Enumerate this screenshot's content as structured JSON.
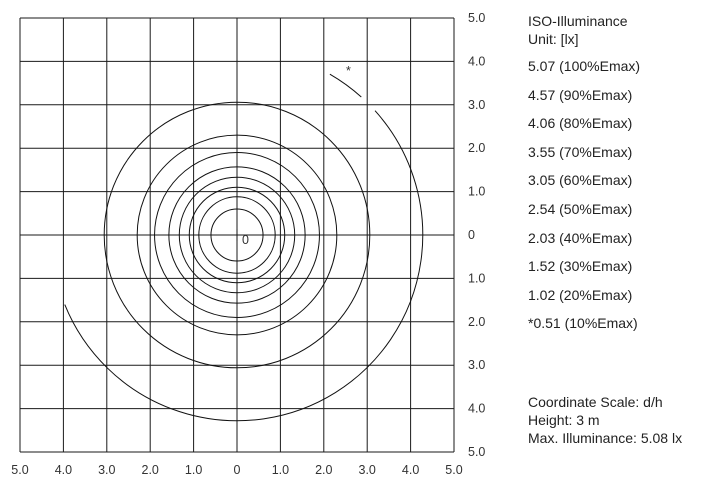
{
  "chart_data": {
    "type": "line",
    "title": "ISO-Illuminance",
    "unit_label": "Unit: [lx]",
    "xlim": [
      -5,
      5
    ],
    "ylim": [
      -5,
      5
    ],
    "grid": true,
    "x_tick_labels": [
      "5.0",
      "4.0",
      "3.0",
      "2.0",
      "1.0",
      "0",
      "1.0",
      "2.0",
      "3.0",
      "4.0",
      "5.0"
    ],
    "y_tick_labels": [
      "5.0",
      "4.0",
      "3.0",
      "2.0",
      "1.0",
      "0",
      "1.0",
      "2.0",
      "3.0",
      "4.0",
      "5.0"
    ],
    "center_label": "0",
    "marker_label": "*",
    "contours": [
      {
        "label": "5.07 (100%Emax)",
        "level": 5.07,
        "radius": null
      },
      {
        "label": "4.57 (90%Emax)",
        "level": 4.57,
        "radius": 0.6
      },
      {
        "label": "4.06 (80%Emax)",
        "level": 4.06,
        "radius": 0.88
      },
      {
        "label": "3.55 (70%Emax)",
        "level": 3.55,
        "radius": 1.1
      },
      {
        "label": "3.05 (60%Emax)",
        "level": 3.05,
        "radius": 1.33
      },
      {
        "label": "2.54 (50%Emax)",
        "level": 2.54,
        "radius": 1.57
      },
      {
        "label": "2.03 (40%Emax)",
        "level": 2.03,
        "radius": 1.9
      },
      {
        "label": "1.52 (30%Emax)",
        "level": 1.52,
        "radius": 2.3
      },
      {
        "label": "1.02 (20%Emax)",
        "level": 1.02,
        "radius": 3.06
      },
      {
        "label": "*0.51 (10%Emax)",
        "level": 0.51,
        "radius": 4.28,
        "partial": true
      }
    ]
  },
  "legend": {
    "title": "ISO-Illuminance",
    "unit": "Unit: [lx]"
  },
  "info": {
    "scale": "Coordinate Scale: d/h",
    "height": "Height: 3 m",
    "max": "Max. Illuminance: 5.08 lx"
  }
}
